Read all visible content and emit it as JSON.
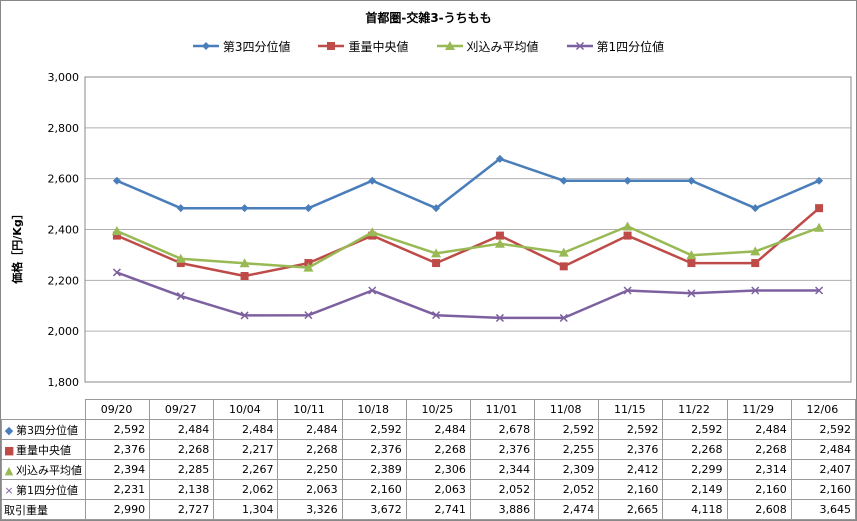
{
  "chart_data": {
    "type": "line",
    "title": "首都圏-交雑3-うちもも",
    "ylabel": "価格［円/Kg］",
    "ylim": [
      1800,
      3000
    ],
    "yticks": [
      "1,800",
      "2,000",
      "2,200",
      "2,400",
      "2,600",
      "2,800",
      "3,000"
    ],
    "ytick_values": [
      1800,
      2000,
      2200,
      2400,
      2600,
      2800,
      3000
    ],
    "grid": true,
    "legend_position": "top",
    "categories": [
      "09/20",
      "09/27",
      "10/04",
      "10/11",
      "10/18",
      "10/25",
      "11/01",
      "11/08",
      "11/15",
      "11/22",
      "11/29",
      "12/06"
    ],
    "series": [
      {
        "name": "第3四分位値",
        "color": "#4a7ebb",
        "marker": "diamond",
        "marker_glyph": "◆",
        "values": [
          2592,
          2484,
          2484,
          2484,
          2592,
          2484,
          2678,
          2592,
          2592,
          2592,
          2484,
          2592
        ],
        "labels": [
          "2,592",
          "2,484",
          "2,484",
          "2,484",
          "2,592",
          "2,484",
          "2,678",
          "2,592",
          "2,592",
          "2,592",
          "2,484",
          "2,592"
        ]
      },
      {
        "name": "重量中央値",
        "color": "#be4b48",
        "marker": "square",
        "marker_glyph": "■",
        "values": [
          2376,
          2268,
          2217,
          2268,
          2376,
          2268,
          2376,
          2255,
          2376,
          2268,
          2268,
          2484
        ],
        "labels": [
          "2,376",
          "2,268",
          "2,217",
          "2,268",
          "2,376",
          "2,268",
          "2,376",
          "2,255",
          "2,376",
          "2,268",
          "2,268",
          "2,484"
        ]
      },
      {
        "name": "刈込み平均値",
        "color": "#98b954",
        "marker": "triangle",
        "marker_glyph": "▲",
        "values": [
          2394,
          2285,
          2267,
          2250,
          2389,
          2306,
          2344,
          2309,
          2412,
          2299,
          2314,
          2407
        ],
        "labels": [
          "2,394",
          "2,285",
          "2,267",
          "2,250",
          "2,389",
          "2,306",
          "2,344",
          "2,309",
          "2,412",
          "2,299",
          "2,314",
          "2,407"
        ]
      },
      {
        "name": "第1四分位値",
        "color": "#7d60a0",
        "marker": "x",
        "marker_glyph": "×",
        "values": [
          2231,
          2138,
          2062,
          2063,
          2160,
          2063,
          2052,
          2052,
          2160,
          2149,
          2160,
          2160
        ],
        "labels": [
          "2,231",
          "2,138",
          "2,062",
          "2,063",
          "2,160",
          "2,063",
          "2,052",
          "2,052",
          "2,160",
          "2,149",
          "2,160",
          "2,160"
        ]
      }
    ],
    "extra_rows": [
      {
        "name": "取引重量",
        "values": [
          2990,
          2727,
          1304,
          3326,
          3672,
          2741,
          3886,
          2474,
          2665,
          4118,
          2608,
          3645
        ],
        "labels": [
          "2,990",
          "2,727",
          "1,304",
          "3,326",
          "3,672",
          "2,741",
          "3,886",
          "2,474",
          "2,665",
          "4,118",
          "2,608",
          "3,645"
        ]
      }
    ]
  }
}
